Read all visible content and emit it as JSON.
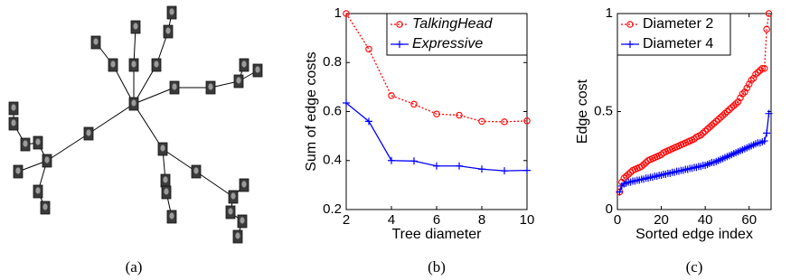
{
  "captions": [
    "(a)",
    "(b)",
    "(c)"
  ],
  "chart_data": [
    {
      "type": "line",
      "xlabel": "Tree diameter",
      "ylabel": "Sum of edge costs",
      "x": [
        2,
        3,
        4,
        5,
        6,
        7,
        8,
        9,
        10
      ],
      "series": [
        {
          "name": "TalkingHead",
          "color": "#ff0000",
          "linestyle": "dotted",
          "marker": "circle",
          "values": [
            1.0,
            0.855,
            0.665,
            0.63,
            0.59,
            0.585,
            0.56,
            0.558,
            0.562
          ]
        },
        {
          "name": "Expressive",
          "color": "#0000ff",
          "linestyle": "solid",
          "marker": "plus",
          "values": [
            0.635,
            0.56,
            0.4,
            0.398,
            0.378,
            0.378,
            0.365,
            0.358,
            0.36
          ]
        }
      ],
      "xlim": [
        2,
        10
      ],
      "xticks": [
        2,
        4,
        6,
        8,
        10
      ],
      "ylim": [
        0.2,
        1
      ],
      "yticks": [
        0.2,
        0.4,
        0.6,
        0.8,
        1
      ],
      "legend": "upper right",
      "legend_italic": true
    },
    {
      "type": "line",
      "xlabel": "Sorted edge index",
      "ylabel": "Edge cost",
      "x": [
        1,
        2,
        3,
        4,
        5,
        6,
        7,
        8,
        9,
        10,
        11,
        12,
        13,
        14,
        15,
        16,
        17,
        18,
        19,
        20,
        21,
        22,
        23,
        24,
        25,
        26,
        27,
        28,
        29,
        30,
        31,
        32,
        33,
        34,
        35,
        36,
        37,
        38,
        39,
        40,
        41,
        42,
        43,
        44,
        45,
        46,
        47,
        48,
        49,
        50,
        51,
        52,
        53,
        54,
        55,
        56,
        57,
        58,
        59,
        60,
        61,
        62,
        63,
        64,
        65,
        66,
        67,
        68,
        69
      ],
      "series": [
        {
          "name": "Diameter 2",
          "color": "#ff0000",
          "linestyle": "dotted",
          "marker": "circle",
          "values": [
            0.09,
            0.14,
            0.16,
            0.17,
            0.18,
            0.19,
            0.2,
            0.205,
            0.21,
            0.215,
            0.22,
            0.23,
            0.24,
            0.25,
            0.255,
            0.26,
            0.265,
            0.27,
            0.275,
            0.28,
            0.29,
            0.295,
            0.3,
            0.305,
            0.31,
            0.315,
            0.32,
            0.325,
            0.33,
            0.335,
            0.34,
            0.345,
            0.35,
            0.355,
            0.36,
            0.37,
            0.375,
            0.38,
            0.39,
            0.4,
            0.41,
            0.42,
            0.43,
            0.44,
            0.45,
            0.46,
            0.47,
            0.48,
            0.49,
            0.5,
            0.51,
            0.52,
            0.53,
            0.54,
            0.55,
            0.57,
            0.59,
            0.6,
            0.62,
            0.64,
            0.66,
            0.67,
            0.69,
            0.7,
            0.71,
            0.72,
            0.72,
            0.92,
            1.0
          ]
        },
        {
          "name": "Diameter 4",
          "color": "#0000ff",
          "linestyle": "solid",
          "marker": "plus",
          "values": [
            0.09,
            0.12,
            0.13,
            0.135,
            0.14,
            0.14,
            0.145,
            0.145,
            0.15,
            0.15,
            0.155,
            0.155,
            0.16,
            0.16,
            0.165,
            0.165,
            0.17,
            0.17,
            0.175,
            0.175,
            0.18,
            0.18,
            0.185,
            0.185,
            0.19,
            0.19,
            0.195,
            0.195,
            0.2,
            0.2,
            0.205,
            0.205,
            0.21,
            0.21,
            0.215,
            0.215,
            0.22,
            0.22,
            0.225,
            0.225,
            0.23,
            0.235,
            0.24,
            0.24,
            0.245,
            0.25,
            0.255,
            0.26,
            0.265,
            0.27,
            0.275,
            0.28,
            0.285,
            0.29,
            0.295,
            0.3,
            0.305,
            0.31,
            0.315,
            0.32,
            0.325,
            0.33,
            0.335,
            0.34,
            0.34,
            0.345,
            0.35,
            0.39,
            0.49
          ]
        }
      ],
      "xlim": [
        0,
        70
      ],
      "xticks": [
        0,
        20,
        40,
        60
      ],
      "ylim": [
        0,
        1
      ],
      "yticks": [
        0,
        0.5,
        1
      ],
      "legend": "upper left",
      "legend_italic": false
    }
  ]
}
